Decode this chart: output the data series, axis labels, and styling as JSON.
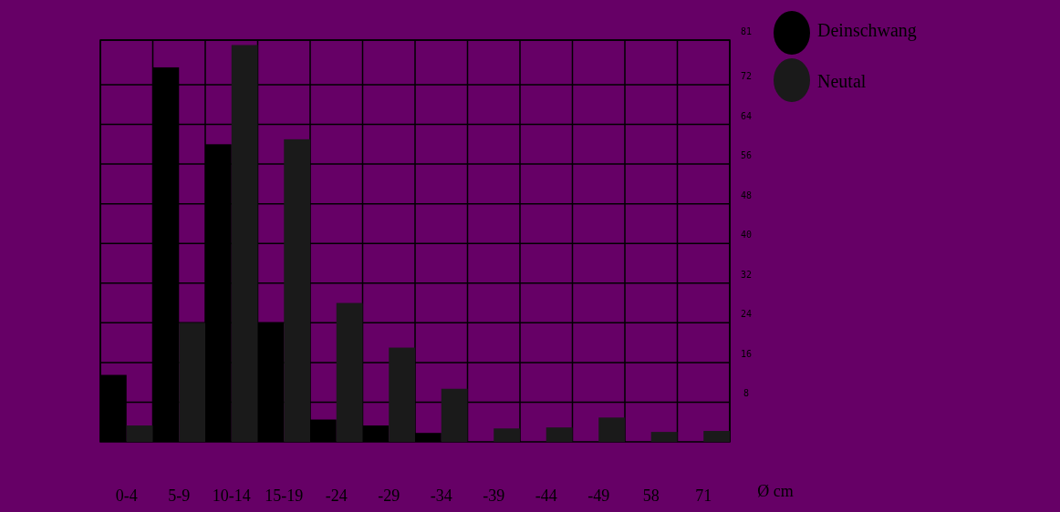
{
  "chart_data": {
    "type": "bar",
    "xlabel": "Ø cm",
    "categories": [
      "0-4",
      "5-9",
      "10-14",
      "15-19",
      "-24",
      "-29",
      "-34",
      "-39",
      "-44",
      "-49",
      "58",
      "71"
    ],
    "series": [
      {
        "name": "Deinschwang",
        "color": "#000000",
        "values": [
          13.5,
          75.5,
          60,
          24,
          4.5,
          3.3,
          1.8,
          0,
          0,
          0,
          0,
          0
        ]
      },
      {
        "name": "Neutal",
        "color": "#1a1a1a",
        "values": [
          3.3,
          24,
          80,
          61,
          28,
          19,
          10.7,
          2.7,
          2.9,
          4.9,
          2,
          2.2
        ]
      }
    ],
    "ylim": [
      0,
      81
    ],
    "yticks": [
      8,
      16,
      24,
      32,
      40,
      48,
      56,
      64,
      72,
      81
    ],
    "grid": true,
    "legend": "top right"
  }
}
